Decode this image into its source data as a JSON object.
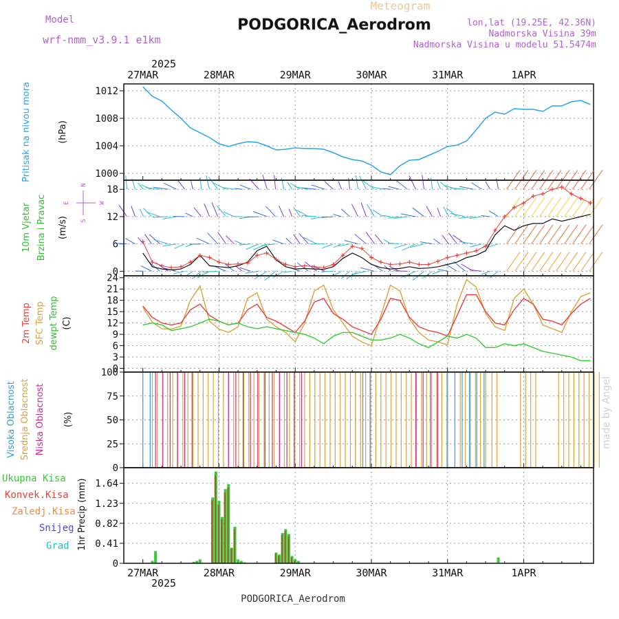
{
  "header": {
    "model_label": "Model",
    "model_name": "wrf-nmm_v3.9.1  e1km",
    "product": "Meteogram",
    "station": "PODGORICA_Aerodrom",
    "lonlat": "lon,lat (19.25E, 42.36N)",
    "elevation": "Nadmorska Visina 39m",
    "model_elevation": "Nadmorska Visina u modelu 51.5474m",
    "footer_station": "PODGORICA_Aerodrom",
    "watermark": "made by Angel"
  },
  "colors": {
    "pressure": "#2aa4e8",
    "temp2m": "#e8403a",
    "sfc_temp": "#d9a23a",
    "dewpoint": "#33cc33",
    "high_cloud": "#2a9fe0",
    "mid_cloud": "#d9a23a",
    "low_cloud": "#cc2a8a",
    "total_precip": "#33cc33",
    "conv_precip": "#e8403a",
    "frozen_precip": "#f08a3a",
    "snow": "#4a4ae0",
    "hail": "#2ac0c0",
    "grid": "#999999"
  },
  "time_axis": {
    "year": "2025",
    "days": [
      "27MAR",
      "28MAR",
      "29MAR",
      "30MAR",
      "31MAR",
      "1APR"
    ]
  },
  "chart_data": [
    {
      "type": "line",
      "panel": "pressure",
      "ylabel_main": "Pritisak na nivou mora",
      "ylabel_unit": "(hPa)",
      "ylim": [
        999,
        1013
      ],
      "yticks": [
        "1000",
        "1004",
        "1008",
        "1012"
      ],
      "x_hours": [
        0,
        3,
        6,
        9,
        12,
        15,
        18,
        21,
        24,
        27,
        30,
        33,
        36,
        39,
        42,
        45,
        48,
        51,
        54,
        57,
        60,
        63,
        66,
        69,
        72,
        75,
        78,
        81,
        84,
        87,
        90,
        93,
        96,
        99,
        102,
        105,
        108,
        111,
        114,
        117,
        120,
        123,
        126,
        129,
        132,
        135,
        138,
        141
      ],
      "series": [
        {
          "key": "pressure",
          "values": [
            1012.6,
            1011.2,
            1010.5,
            1009.2,
            1008.0,
            1006.6,
            1005.9,
            1005.2,
            1004.3,
            1003.9,
            1004.3,
            1004.6,
            1004.5,
            1004.0,
            1003.4,
            1003.5,
            1003.7,
            1003.6,
            1003.6,
            1003.5,
            1003.0,
            1002.4,
            1002.0,
            1001.8,
            1001.2,
            1000.2,
            999.8,
            1001.1,
            1001.9,
            1002.0,
            1002.6,
            1003.2,
            1003.9,
            1004.1,
            1004.7,
            1006.3,
            1008.0,
            1008.9,
            1008.6,
            1009.4,
            1009.3,
            1009.3,
            1009.0,
            1009.8,
            1009.8,
            1010.4,
            1010.6,
            1010.0
          ]
        }
      ]
    },
    {
      "type": "line",
      "panel": "wind",
      "ylabel_main": "10m Vjetar",
      "ylabel_sub": "Brzina i Pravac",
      "ylabel_unit": "(m/s)",
      "compass": {
        "n": "N",
        "s": "S",
        "e": "E",
        "w": "W"
      },
      "ylim": [
        -1,
        20
      ],
      "yticks": [
        "0",
        "6",
        "12",
        "18"
      ],
      "x_hours": [
        0,
        3,
        6,
        9,
        12,
        15,
        18,
        21,
        24,
        27,
        30,
        33,
        36,
        39,
        42,
        45,
        48,
        51,
        54,
        57,
        60,
        63,
        66,
        69,
        72,
        75,
        78,
        81,
        84,
        87,
        90,
        93,
        96,
        99,
        102,
        105,
        108,
        111,
        114,
        117,
        120,
        123,
        126,
        129,
        132,
        135,
        138,
        141
      ],
      "series": [
        {
          "key": "gust",
          "values": [
            6.5,
            2.0,
            1.2,
            0.8,
            1.0,
            2.0,
            3.5,
            3.0,
            2.0,
            1.5,
            1.6,
            1.8,
            3.5,
            4.0,
            2.6,
            1.5,
            1.0,
            1.2,
            1.0,
            0.8,
            1.5,
            3.5,
            5.5,
            5.0,
            3.0,
            2.0,
            1.5,
            1.6,
            2.0,
            1.5,
            1.5,
            2.2,
            3.0,
            3.5,
            4.0,
            4.5,
            5.5,
            9.0,
            12.0,
            14.0,
            15.0,
            16.5,
            17.0,
            18.0,
            18.5,
            17.0,
            16.0,
            15.0
          ]
        },
        {
          "key": "mean",
          "values": [
            4.0,
            1.0,
            0.5,
            0.3,
            0.5,
            1.5,
            3.5,
            1.2,
            1.0,
            0.8,
            1.2,
            2.0,
            4.5,
            5.5,
            2.5,
            1.0,
            0.5,
            0.6,
            0.5,
            0.4,
            1.0,
            2.8,
            4.0,
            3.0,
            1.5,
            0.8,
            0.5,
            0.6,
            1.0,
            0.6,
            0.7,
            1.0,
            1.5,
            2.0,
            3.0,
            3.5,
            4.5,
            8.0,
            10.0,
            9.0,
            10.0,
            10.5,
            10.5,
            11.5,
            11.0,
            11.5,
            12.0,
            12.5
          ]
        }
      ]
    },
    {
      "type": "line",
      "panel": "temperature",
      "ylabel_lines": [
        "2m Temp",
        "SFC Temp",
        "dewpt Temp"
      ],
      "ylabel_unit": "(C)",
      "ylim": [
        -1,
        24.5
      ],
      "yticks": [
        "0",
        "3",
        "6",
        "9",
        "12",
        "15",
        "18",
        "21",
        "24"
      ],
      "x_hours": [
        0,
        3,
        6,
        9,
        12,
        15,
        18,
        21,
        24,
        27,
        30,
        33,
        36,
        39,
        42,
        45,
        48,
        51,
        54,
        57,
        60,
        63,
        66,
        69,
        72,
        75,
        78,
        81,
        84,
        87,
        90,
        93,
        96,
        99,
        102,
        105,
        108,
        111,
        114,
        117,
        120,
        123,
        126,
        129,
        132,
        135,
        138,
        141
      ],
      "series": [
        {
          "key": "sfc_temp",
          "values": [
            16.2,
            12.2,
            10.5,
            10.4,
            11.2,
            18.0,
            21.8,
            12.5,
            10.4,
            9.5,
            11.0,
            18.5,
            20.0,
            13.0,
            11.0,
            9.5,
            7.0,
            12.0,
            20.5,
            22.0,
            15.5,
            12.0,
            8.5,
            7.0,
            6.0,
            14.0,
            22.0,
            20.5,
            13.0,
            9.5,
            7.5,
            7.0,
            6.2,
            17.0,
            23.5,
            21.5,
            14.5,
            11.0,
            10.0,
            18.5,
            21.0,
            17.0,
            11.5,
            10.5,
            9.5,
            15.0,
            19.0,
            20.0
          ]
        },
        {
          "key": "temp2m",
          "values": [
            16.5,
            13.5,
            12.0,
            11.5,
            12.0,
            15.5,
            17.0,
            14.0,
            12.5,
            11.5,
            12.0,
            15.5,
            17.0,
            13.5,
            12.5,
            11.0,
            9.5,
            12.5,
            17.5,
            18.5,
            14.5,
            13.0,
            11.0,
            10.0,
            9.0,
            13.0,
            18.5,
            18.0,
            13.5,
            11.0,
            10.0,
            9.5,
            8.5,
            14.0,
            19.5,
            19.5,
            15.0,
            12.0,
            11.5,
            15.5,
            18.5,
            17.0,
            13.0,
            12.5,
            11.5,
            14.5,
            17.0,
            18.5
          ]
        },
        {
          "key": "dewpoint",
          "values": [
            11.5,
            12.0,
            11.5,
            10.0,
            10.5,
            11.0,
            12.0,
            13.0,
            12.5,
            11.5,
            12.0,
            11.0,
            10.5,
            11.0,
            10.5,
            10.0,
            9.5,
            9.0,
            8.0,
            6.5,
            8.5,
            9.5,
            9.5,
            8.5,
            7.5,
            7.5,
            8.0,
            9.0,
            8.0,
            6.5,
            5.5,
            7.0,
            8.5,
            8.0,
            9.0,
            8.0,
            5.5,
            5.5,
            6.5,
            6.0,
            6.5,
            5.5,
            4.5,
            4.0,
            3.5,
            3.0,
            2.0,
            2.0
          ]
        }
      ]
    },
    {
      "type": "bar",
      "panel": "cloud",
      "ylabel_lines": [
        "Visoka Oblacnost",
        "Srednja Oblacnost",
        "Niska Oblacnost"
      ],
      "ylabel_unit": "(%)",
      "ylim": [
        0,
        100
      ],
      "yticks": [
        "0",
        "25",
        "50",
        "75",
        "100"
      ],
      "series": [
        {
          "key": "high_cloud",
          "segments": [
            [
              0,
              6
            ],
            [
              67,
              73
            ],
            [
              96,
              108
            ]
          ]
        },
        {
          "key": "mid_cloud",
          "segments": [
            [
              3,
              97
            ],
            [
              100,
              108
            ],
            [
              110,
              113
            ],
            [
              119,
              124
            ],
            [
              131,
              144
            ]
          ]
        },
        {
          "key": "low_cloud",
          "segments": [
            [
              4,
              16
            ],
            [
              27,
              51
            ],
            [
              86,
              94
            ]
          ]
        }
      ]
    },
    {
      "type": "bar",
      "panel": "precipitation",
      "legend": [
        "Ukupna Kisa",
        "Konvek.Kisa",
        "Zaledj.Kisa",
        "Snijeg",
        "Grad"
      ],
      "ylabel_unit": "1hr Precip (mm)",
      "ylim": [
        0,
        1.96
      ],
      "yticks": [
        "0",
        "0.41",
        "0.82",
        "1.23",
        "1.64"
      ],
      "x_hours": [
        3,
        4,
        16,
        17,
        18,
        22,
        23,
        24,
        25,
        26,
        27,
        28,
        29,
        30,
        31,
        32,
        42,
        43,
        44,
        45,
        46,
        47,
        48,
        49,
        112
      ],
      "series": [
        {
          "key": "total_precip",
          "values": [
            0.05,
            0.25,
            0.03,
            0.05,
            0.08,
            1.35,
            1.88,
            1.28,
            0.95,
            1.52,
            1.62,
            0.32,
            0.75,
            0.08,
            0.05,
            0.02,
            0.22,
            0.18,
            0.62,
            0.7,
            0.6,
            0.15,
            0.08,
            0.05,
            0.12
          ]
        },
        {
          "key": "conv_precip",
          "values": [
            0,
            0,
            0,
            0,
            0,
            1.3,
            1.8,
            1.2,
            0.9,
            1.45,
            1.55,
            0.3,
            0.7,
            0,
            0,
            0,
            0.2,
            0.15,
            0.58,
            0.66,
            0.55,
            0.12,
            0.05,
            0.02,
            0
          ]
        }
      ]
    }
  ]
}
